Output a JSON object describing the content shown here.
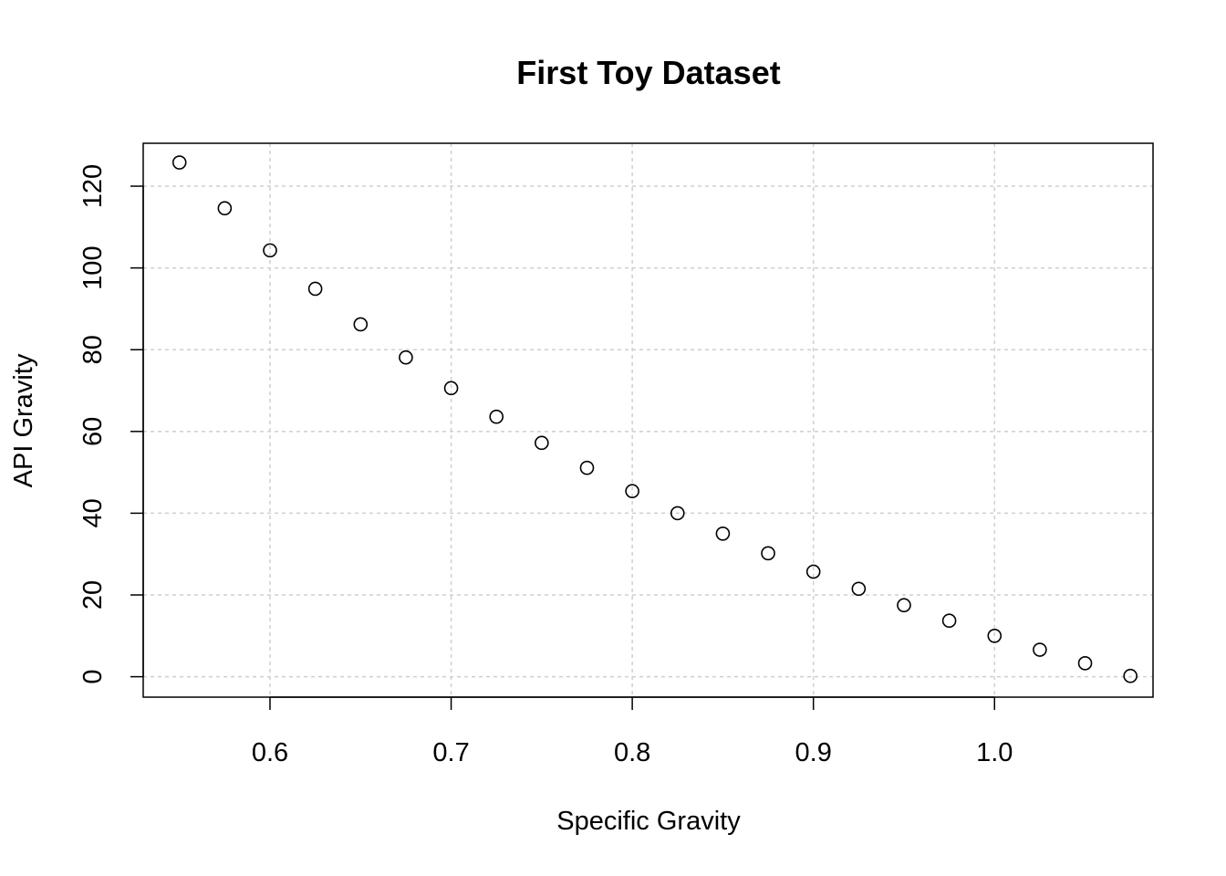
{
  "chart_data": {
    "type": "scatter",
    "title": "First Toy Dataset",
    "xlabel": "Specific Gravity",
    "ylabel": "API Gravity",
    "xlim": [
      0.53,
      1.0875
    ],
    "ylim": [
      -5,
      130.5
    ],
    "xticks": [
      0.6,
      0.7,
      0.8,
      0.9,
      1.0
    ],
    "xtick_labels": [
      "0.6",
      "0.7",
      "0.8",
      "0.9",
      "1.0"
    ],
    "yticks": [
      0,
      20,
      40,
      60,
      80,
      100,
      120
    ],
    "ytick_labels": [
      "0",
      "20",
      "40",
      "60",
      "80",
      "100",
      "120"
    ],
    "grid": true,
    "marker": "open-circle",
    "x": [
      0.55,
      0.575,
      0.6,
      0.625,
      0.65,
      0.675,
      0.7,
      0.725,
      0.75,
      0.775,
      0.8,
      0.825,
      0.85,
      0.875,
      0.9,
      0.925,
      0.95,
      0.975,
      1.0,
      1.025,
      1.05,
      1.075
    ],
    "y": [
      125.8,
      114.6,
      104.3,
      94.9,
      86.2,
      78.1,
      70.6,
      63.6,
      57.2,
      51.1,
      45.4,
      40.0,
      35.0,
      30.2,
      25.7,
      21.5,
      17.5,
      13.7,
      10.0,
      6.6,
      3.3,
      0.2
    ]
  }
}
